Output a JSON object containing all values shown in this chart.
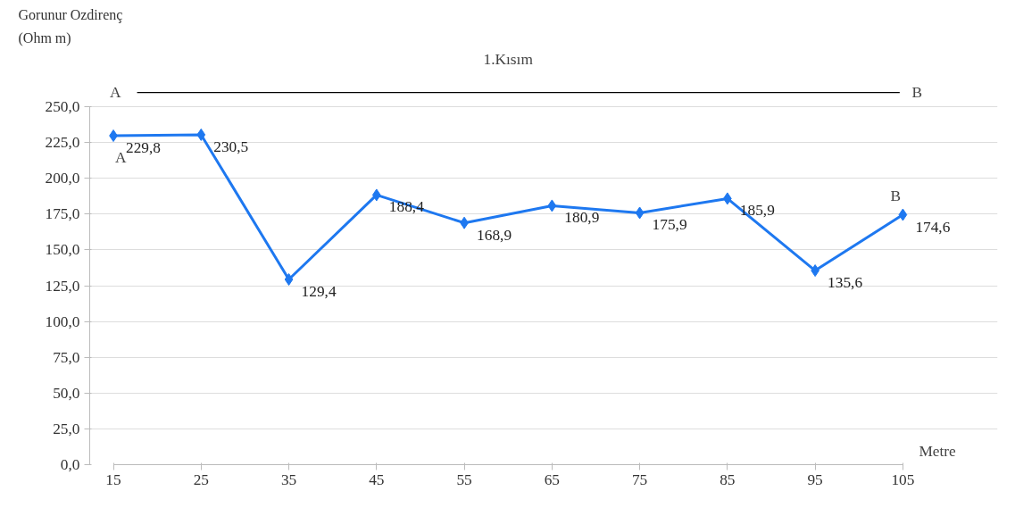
{
  "chart_data": {
    "type": "line",
    "title": "1.Kısım",
    "ylabel": "Gorunur Ozdirenç\n(Ohm m)",
    "xlabel": "Metre",
    "x": [
      15,
      25,
      35,
      45,
      55,
      65,
      75,
      85,
      95,
      105
    ],
    "series": [
      {
        "color": "#1e78f0",
        "values": [
          229.8,
          230.5,
          129.4,
          188.4,
          168.9,
          180.9,
          175.9,
          185.9,
          135.6,
          174.6
        ],
        "value_labels": [
          "229,8",
          "230,5",
          "129,4",
          "188,4",
          "168,9",
          "180,9",
          "175,9",
          "185,9",
          "135,6",
          "174,6"
        ]
      }
    ],
    "xlim": [
      15,
      105
    ],
    "xticks": [
      15,
      25,
      35,
      45,
      55,
      65,
      75,
      85,
      95,
      105
    ],
    "ylim": [
      0,
      250
    ],
    "yticks": [
      {
        "value": 0,
        "label": "0,0"
      },
      {
        "value": 25,
        "label": "25,0"
      },
      {
        "value": 50,
        "label": "50,0"
      },
      {
        "value": 75,
        "label": "75,0"
      },
      {
        "value": 100,
        "label": "100,0"
      },
      {
        "value": 125,
        "label": "125,0"
      },
      {
        "value": 150,
        "label": "150,0"
      },
      {
        "value": 175,
        "label": "175,0"
      },
      {
        "value": 200,
        "label": "200,0"
      },
      {
        "value": 225,
        "label": "225,0"
      },
      {
        "value": 250,
        "label": "250,0"
      }
    ],
    "grid": "y",
    "marker": "diamond",
    "line_style": "solid",
    "annotations": [
      "A",
      "B",
      {
        "text": "A",
        "x": 15,
        "y": 229.8
      },
      {
        "text": "B",
        "x": 105,
        "y": 174.6
      }
    ]
  }
}
